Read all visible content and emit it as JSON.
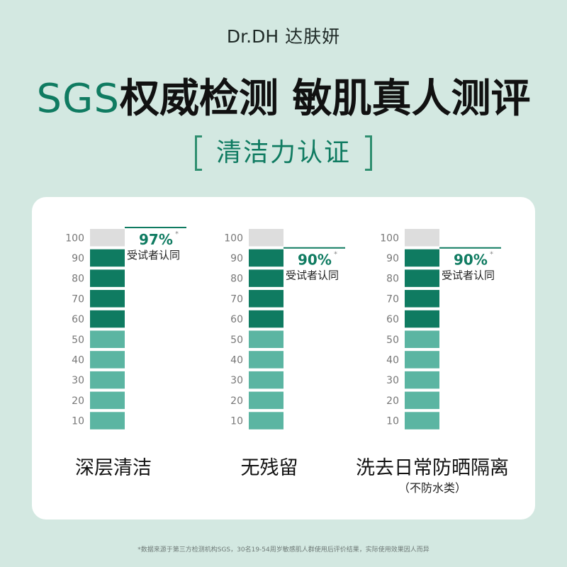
{
  "brand": {
    "logo_text": "Dr.DH",
    "name": "达肤妍"
  },
  "headline": {
    "accent": "SGS",
    "rest": "权威检测  敏肌真人测评"
  },
  "subtitle": "清洁力认证",
  "colors": {
    "background": "#d3e8e1",
    "dark_green": "#0f7b61",
    "light_green": "#5bb5a2",
    "empty": "#dddddd"
  },
  "chart_data": [
    {
      "type": "bar",
      "category": "深层清洁",
      "note": "",
      "value": 97,
      "value_label": "97%",
      "asterisk": "*",
      "caption": "受试者认同",
      "ticks": [
        100,
        90,
        80,
        70,
        60,
        50,
        40,
        30,
        20,
        10
      ],
      "ylim": [
        0,
        100
      ]
    },
    {
      "type": "bar",
      "category": "无残留",
      "note": "",
      "value": 90,
      "value_label": "90%",
      "asterisk": "*",
      "caption": "受试者认同",
      "ticks": [
        100,
        90,
        80,
        70,
        60,
        50,
        40,
        30,
        20,
        10
      ],
      "ylim": [
        0,
        100
      ]
    },
    {
      "type": "bar",
      "category": "洗去日常防晒隔离",
      "note": "（不防水类）",
      "value": 90,
      "value_label": "90%",
      "asterisk": "*",
      "caption": "受试者认同",
      "ticks": [
        100,
        90,
        80,
        70,
        60,
        50,
        40,
        30,
        20,
        10
      ],
      "ylim": [
        0,
        100
      ]
    }
  ],
  "footnote": "*数据来源于第三方检测机构SGS，30名19-54周岁敏感肌人群使用后评价结果，实际使用效果因人而异"
}
